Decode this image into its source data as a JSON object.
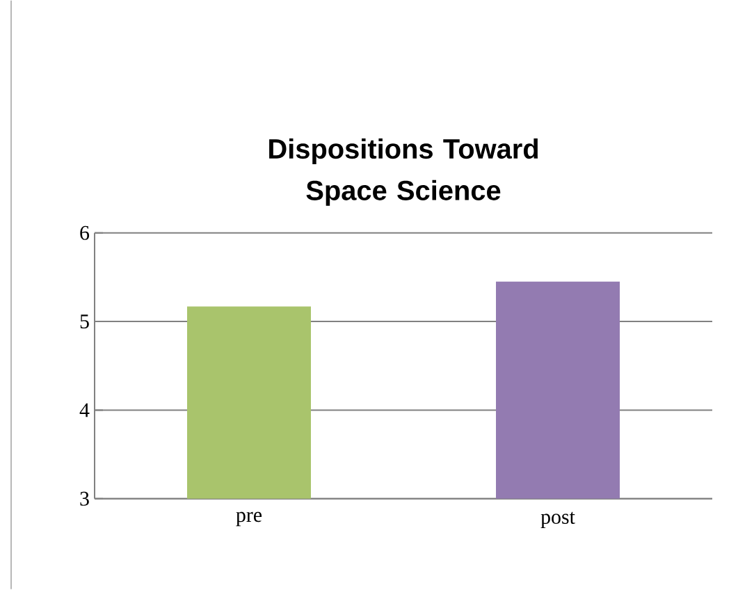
{
  "chart_data": {
    "type": "bar",
    "title": "Dispositions Toward Space Science",
    "categories": [
      "pre",
      "post"
    ],
    "values": [
      5.17,
      5.45
    ],
    "colors": [
      "#a9c46c",
      "#937bb1"
    ],
    "ylim": [
      3,
      6
    ],
    "yticks": [
      3,
      4,
      5,
      6
    ],
    "grid": "y"
  }
}
